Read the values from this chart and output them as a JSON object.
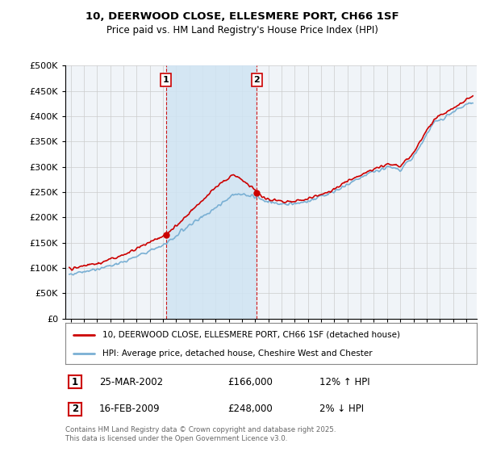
{
  "title_line1": "10, DEERWOOD CLOSE, ELLESMERE PORT, CH66 1SF",
  "title_line2": "Price paid vs. HM Land Registry's House Price Index (HPI)",
  "legend_label1": "10, DEERWOOD CLOSE, ELLESMERE PORT, CH66 1SF (detached house)",
  "legend_label2": "HPI: Average price, detached house, Cheshire West and Chester",
  "sale1_date": "25-MAR-2002",
  "sale1_price": "£166,000",
  "sale1_hpi": "12% ↑ HPI",
  "sale2_date": "16-FEB-2009",
  "sale2_price": "£248,000",
  "sale2_hpi": "2% ↓ HPI",
  "copyright_text": "Contains HM Land Registry data © Crown copyright and database right 2025.\nThis data is licensed under the Open Government Licence v3.0.",
  "sale1_year": 2002.23,
  "sale2_year": 2009.12,
  "hpi_line_color": "#7ab0d4",
  "hpi_fill_color": "#d0e4f3",
  "price_color": "#cc0000",
  "vline_color": "#cc0000",
  "bg_color": "#f0f4f8",
  "plot_bg": "#ffffff",
  "grid_color": "#cccccc",
  "ylim_min": 0,
  "ylim_max": 500000
}
